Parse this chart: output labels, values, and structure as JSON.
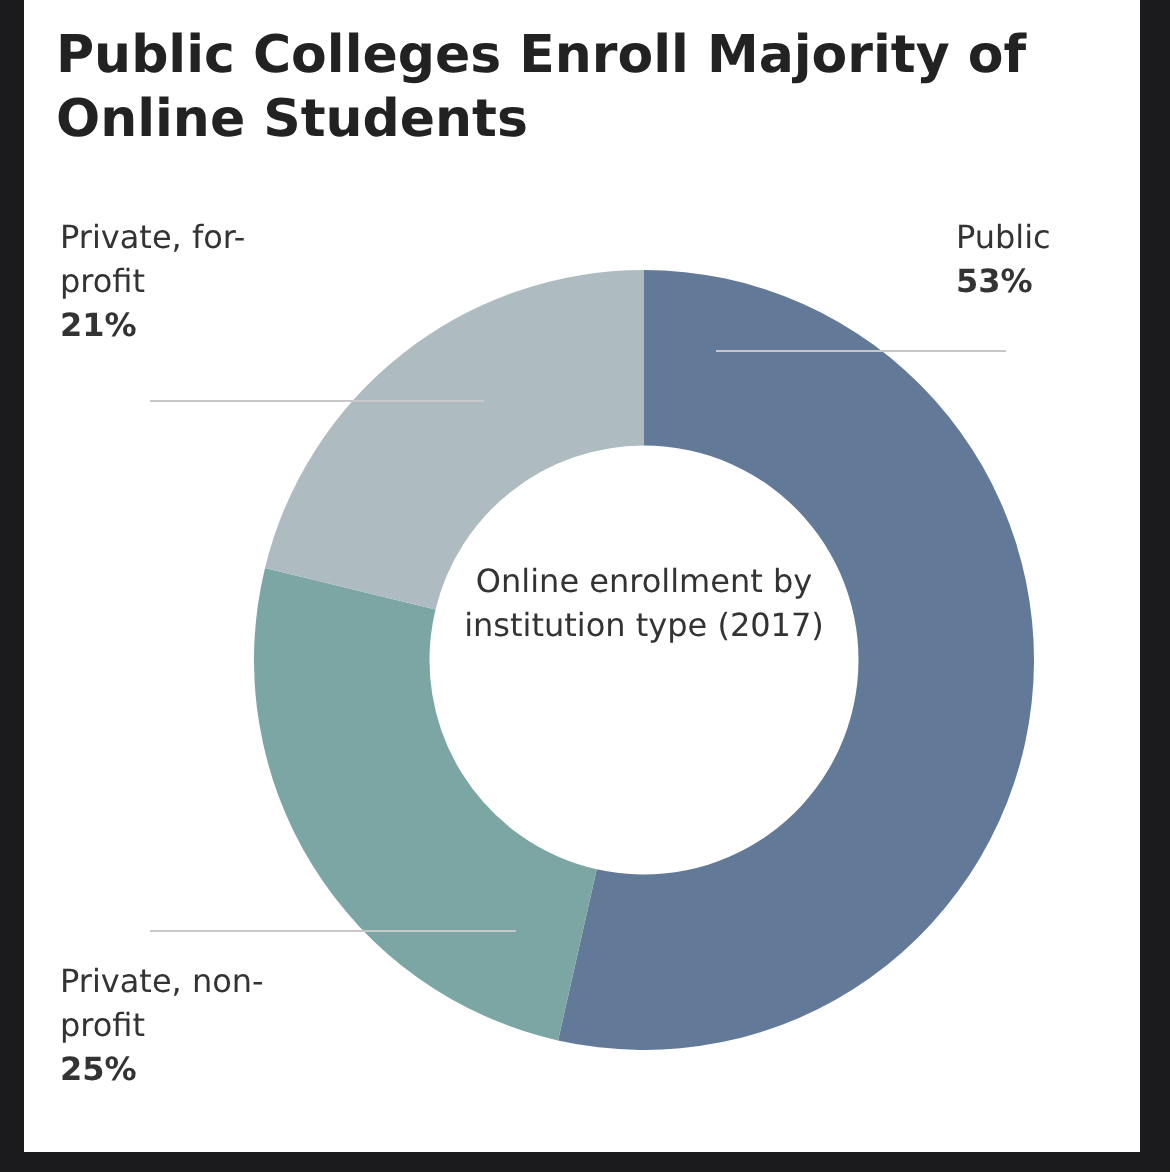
{
  "chart_data": {
    "type": "donut",
    "title": "Public Colleges Enroll Majority of Online Students",
    "categories": [
      "Public",
      "Private, non-profit",
      "Private, for-profit"
    ],
    "values": [
      53,
      25,
      21
    ],
    "colors": [
      "#627a98",
      "#7ba6a4",
      "#aebcc1"
    ],
    "value_labels": [
      "53%",
      "25%",
      "21%"
    ],
    "annotations": [
      "Online enrollment by institution type (2017)"
    ],
    "legend": false
  }
}
